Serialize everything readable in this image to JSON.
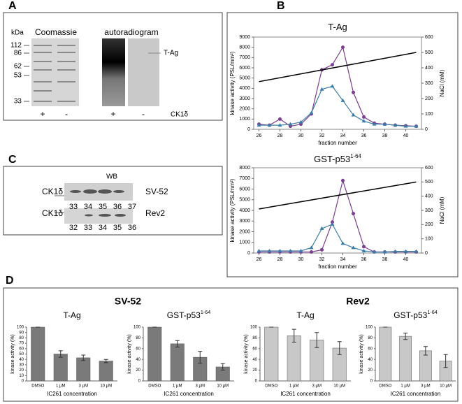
{
  "panel_labels": [
    "A",
    "B",
    "C",
    "D"
  ],
  "panel_a": {
    "marker_title": "kDa",
    "markers": [
      "112",
      "86",
      "62",
      "53",
      "33"
    ],
    "stain": "Coomassie",
    "autoradiogram": "autoradiogram",
    "band": "T-Ag",
    "lanes": [
      "+",
      "-",
      "+",
      "-"
    ],
    "lane_label": "CK1δ"
  },
  "panel_c": {
    "title": "WB",
    "rows": [
      {
        "label": "CK1δ",
        "cell_line": "SV-52",
        "fractions": [
          "33",
          "34",
          "35",
          "36",
          "37"
        ]
      },
      {
        "label": "CK1δ",
        "cell_line": "Rev2",
        "fractions": [
          "32",
          "33",
          "34",
          "35",
          "36"
        ]
      }
    ]
  },
  "panel_d": {
    "groups": [
      "SV-52",
      "Rev2"
    ]
  },
  "chart_data": [
    {
      "type": "line",
      "title": "T-Ag",
      "x_label": "fraction number",
      "y_label": "kinase activity (PSL/mm²)",
      "y2_label": "NaCl (mM)",
      "x": [
        26,
        27,
        28,
        29,
        30,
        31,
        32,
        33,
        34,
        35,
        36,
        37,
        38,
        39,
        40,
        41
      ],
      "xlim": [
        25.5,
        41.5
      ],
      "xticks": [
        26,
        28,
        30,
        32,
        34,
        36,
        38,
        40
      ],
      "ylim": [
        0,
        9000
      ],
      "yticks": [
        0,
        1000,
        2000,
        3000,
        4000,
        5000,
        6000,
        7000,
        8000,
        9000
      ],
      "y2lim": [
        0,
        600
      ],
      "y2ticks": [
        0,
        100,
        200,
        300,
        400,
        500,
        600
      ],
      "series": [
        {
          "color": "#7b3f8f",
          "marker": "circle",
          "values": [
            500,
            400,
            1000,
            300,
            500,
            1500,
            5800,
            6300,
            8000,
            3600,
            1200,
            600,
            500,
            400,
            350,
            300
          ]
        },
        {
          "color": "#3b7ca8",
          "marker": "triangle",
          "values": [
            400,
            400,
            400,
            500,
            700,
            1600,
            3900,
            4200,
            2800,
            1400,
            800,
            500,
            500,
            400,
            300,
            300
          ]
        },
        {
          "color": "#000000",
          "axis": "y2",
          "x": [
            26,
            41
          ],
          "values": [
            310,
            500
          ]
        }
      ]
    },
    {
      "type": "line",
      "title": "GST-p53",
      "title_superscript": "1-64",
      "x_label": "fraction number",
      "y_label": "kinase activity (PSL/mm²)",
      "y2_label": "NaCl (mM)",
      "x": [
        26,
        27,
        28,
        29,
        30,
        31,
        32,
        33,
        34,
        35,
        36,
        37,
        38,
        39,
        40,
        41
      ],
      "xlim": [
        25.5,
        41.5
      ],
      "xticks": [
        26,
        28,
        30,
        32,
        34,
        36,
        38,
        40
      ],
      "ylim": [
        0,
        8000
      ],
      "yticks": [
        0,
        1000,
        2000,
        3000,
        4000,
        5000,
        6000,
        7000,
        8000
      ],
      "y2lim": [
        0,
        600
      ],
      "y2ticks": [
        0,
        100,
        200,
        300,
        400,
        500,
        600
      ],
      "series": [
        {
          "color": "#7b3f8f",
          "marker": "circle",
          "values": [
            100,
            100,
            100,
            100,
            100,
            100,
            300,
            2900,
            6800,
            3700,
            600,
            100,
            100,
            100,
            100,
            100
          ]
        },
        {
          "color": "#3b7ca8",
          "marker": "triangle",
          "values": [
            200,
            200,
            200,
            200,
            200,
            500,
            2300,
            2700,
            900,
            500,
            200,
            100,
            100,
            150,
            150,
            150
          ]
        },
        {
          "color": "#000000",
          "axis": "y2",
          "x": [
            26,
            41
          ],
          "values": [
            310,
            500
          ]
        }
      ]
    },
    {
      "type": "bar",
      "title": "T-Ag",
      "x_label": "IC261 concentration",
      "y_label": "kinase activity (%)",
      "color": "#7a7a7a",
      "categories": [
        "DMSO",
        "1 µM",
        "3 µM",
        "10 µM"
      ],
      "values": [
        100,
        50,
        43,
        37
      ],
      "errors": [
        0,
        6,
        5,
        3
      ],
      "ylim": [
        0,
        100
      ],
      "yticks": [
        0,
        10,
        20,
        30,
        40,
        50,
        60,
        70,
        80,
        90,
        100
      ]
    },
    {
      "type": "bar",
      "title": "GST-p53",
      "title_superscript": "1-64",
      "x_label": "IC261 concentration",
      "y_label": "kinase activity (%)",
      "color": "#7a7a7a",
      "categories": [
        "DMSO",
        "1 µM",
        "3 µM",
        "10 µM"
      ],
      "values": [
        100,
        69,
        44,
        26
      ],
      "errors": [
        0,
        6,
        11,
        6
      ],
      "ylim": [
        0,
        100
      ],
      "yticks": [
        0,
        20,
        40,
        60,
        80,
        100
      ]
    },
    {
      "type": "bar",
      "title": "T-Ag",
      "x_label": "IC261 concentration",
      "y_label": "kinase activity (%)",
      "color": "#c8c8c8",
      "categories": [
        "DMSO",
        "1 µM",
        "3 µM",
        "10 µM"
      ],
      "values": [
        100,
        84,
        76,
        61
      ],
      "errors": [
        0,
        12,
        14,
        12
      ],
      "ylim": [
        0,
        100
      ],
      "yticks": [
        0,
        20,
        40,
        60,
        80,
        100
      ]
    },
    {
      "type": "bar",
      "title": "GST-p53",
      "title_superscript": "1-64",
      "x_label": "IC261 concentration",
      "y_label": "kinase activity (%)",
      "color": "#c8c8c8",
      "categories": [
        "DMSO",
        "1 µM",
        "3 µM",
        "10 µM"
      ],
      "values": [
        100,
        83,
        56,
        37
      ],
      "errors": [
        0,
        6,
        8,
        12
      ],
      "ylim": [
        0,
        100
      ],
      "yticks": [
        0,
        20,
        40,
        60,
        80,
        100
      ]
    }
  ]
}
